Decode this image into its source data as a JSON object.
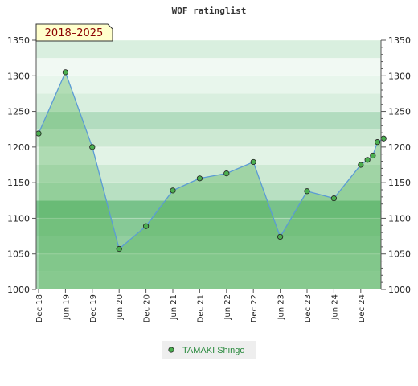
{
  "chart_data": {
    "type": "area",
    "title": "WOF ratinglist",
    "period_badge": "2018–2025",
    "ylim": [
      1000,
      1350
    ],
    "y_ticks": [
      1000,
      1050,
      1100,
      1150,
      1200,
      1250,
      1300,
      1350
    ],
    "x_tick_labels": [
      "Dec 18",
      "Jun 19",
      "Dec 19",
      "Jun 20",
      "Dec 20",
      "Jun 21",
      "Dec 21",
      "Jun 22",
      "Dec 22",
      "Jun 23",
      "Dec 23",
      "Jun 24",
      "Dec 24"
    ],
    "series": [
      {
        "name": "TAMAKI Shingo",
        "points": [
          {
            "x": 0,
            "y": 1219
          },
          {
            "x": 1,
            "y": 1305
          },
          {
            "x": 2,
            "y": 1200
          },
          {
            "x": 3,
            "y": 1057
          },
          {
            "x": 4,
            "y": 1089
          },
          {
            "x": 5,
            "y": 1139
          },
          {
            "x": 6,
            "y": 1156
          },
          {
            "x": 7,
            "y": 1163
          },
          {
            "x": 8,
            "y": 1179
          },
          {
            "x": 9,
            "y": 1074
          },
          {
            "x": 10,
            "y": 1138
          },
          {
            "x": 11,
            "y": 1128
          },
          {
            "x": 12,
            "y": 1175
          },
          {
            "x": 12.25,
            "y": 1182
          },
          {
            "x": 12.45,
            "y": 1188
          },
          {
            "x": 12.62,
            "y": 1207
          },
          {
            "x": 12.85,
            "y": 1212
          }
        ]
      }
    ],
    "legend_position": "bottom-center",
    "grid": true,
    "colors": {
      "line": "#5b9bd5",
      "marker": "#4caf50",
      "area": "#4caf50",
      "legend_bg": "#eeeeee",
      "badge_bg": "#ffffcc"
    }
  }
}
